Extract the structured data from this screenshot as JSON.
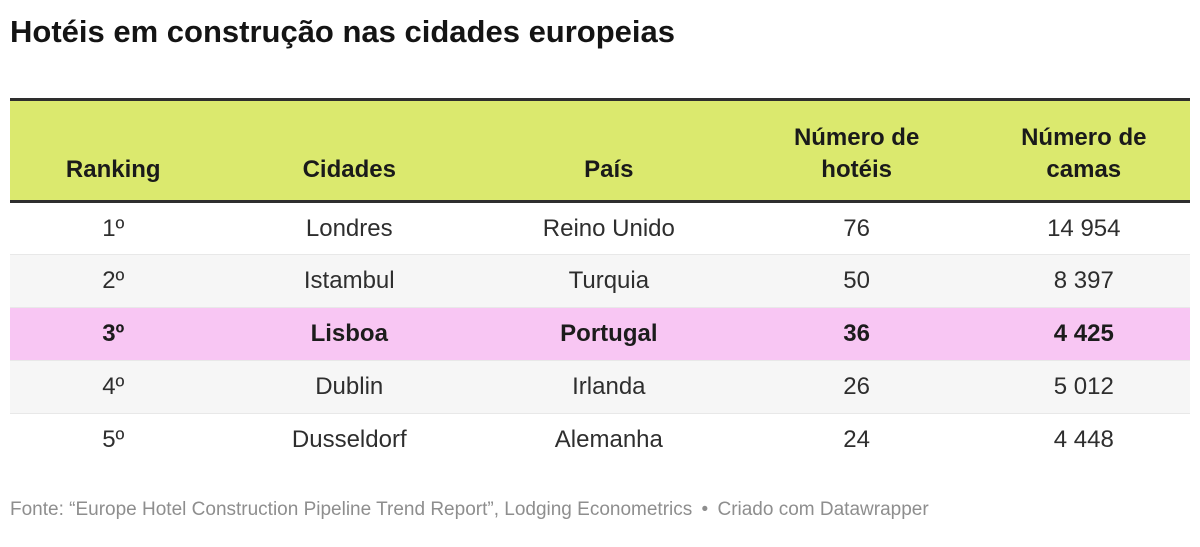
{
  "title": "Hotéis em construção nas cidades europeias",
  "colors": {
    "header_bg": "#dbe96e",
    "highlight_bg": "#f8c6f3",
    "stripe_bg": "#f6f6f6",
    "border_dark": "#2e2e2e",
    "divider": "#e8e8e8",
    "title_color": "#141414",
    "header_text": "#1a1a1a",
    "body_text": "#2e2e2e",
    "footer_text": "#8e8e8e"
  },
  "chart_data": {
    "type": "table",
    "title": "Hotéis em construção nas cidades europeias",
    "columns": [
      "Ranking",
      "Cidades",
      "País",
      "Número de hotéis",
      "Número de camas"
    ],
    "rows": [
      {
        "ranking": "1º",
        "cidade": "Londres",
        "pais": "Reino Unido",
        "hoteis": 76,
        "camas": 14954,
        "highlighted": false
      },
      {
        "ranking": "2º",
        "cidade": "Istambul",
        "pais": "Turquia",
        "hoteis": 50,
        "camas": 8397,
        "highlighted": false
      },
      {
        "ranking": "3º",
        "cidade": "Lisboa",
        "pais": "Portugal",
        "hoteis": 36,
        "camas": 4425,
        "highlighted": true
      },
      {
        "ranking": "4º",
        "cidade": "Dublin",
        "pais": "Irlanda",
        "hoteis": 26,
        "camas": 5012,
        "highlighted": false
      },
      {
        "ranking": "5º",
        "cidade": "Dusseldorf",
        "pais": "Alemanha",
        "hoteis": 24,
        "camas": 4448,
        "highlighted": false
      }
    ],
    "source": "Fonte: “Europe Hotel Construction Pipeline Trend Report”, Lodging Econometrics",
    "credit": "Criado com Datawrapper"
  },
  "table": {
    "columns": [
      "Ranking",
      "Cidades",
      "País",
      "Número de hotéis",
      "Número de camas"
    ],
    "rows": [
      {
        "cells": [
          "1º",
          "Londres",
          "Reino Unido",
          "76",
          "14 954"
        ]
      },
      {
        "cells": [
          "2º",
          "Istambul",
          "Turquia",
          "50",
          "8 397"
        ]
      },
      {
        "cells": [
          "3º",
          "Lisboa",
          "Portugal",
          "36",
          "4 425"
        ]
      },
      {
        "cells": [
          "4º",
          "Dublin",
          "Irlanda",
          "26",
          "5 012"
        ]
      },
      {
        "cells": [
          "5º",
          "Dusseldorf",
          "Alemanha",
          "24",
          "4 448"
        ]
      }
    ]
  },
  "footer": {
    "source": "Fonte: “Europe Hotel Construction Pipeline Trend Report”, Lodging Econometrics",
    "separator": "•",
    "credit": "Criado com Datawrapper"
  }
}
